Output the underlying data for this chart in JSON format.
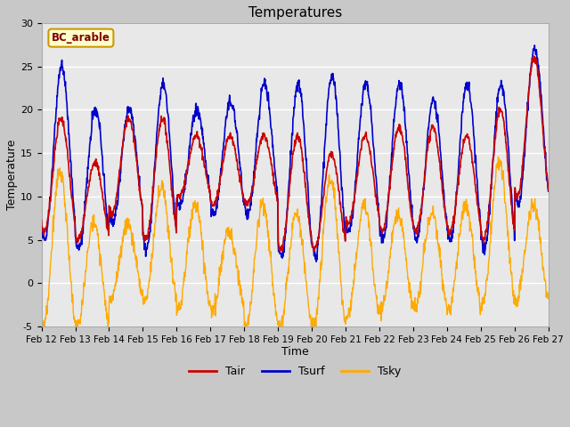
{
  "title": "Temperatures",
  "xlabel": "Time",
  "ylabel": "Temperature",
  "annotation": "BC_arable",
  "ylim": [
    -5,
    30
  ],
  "legend": [
    "Tair",
    "Tsurf",
    "Tsky"
  ],
  "colors": {
    "Tair": "#cc0000",
    "Tsurf": "#0000cc",
    "Tsky": "#ffaa00"
  },
  "xtick_labels": [
    "Feb 12",
    "Feb 13",
    "Feb 14",
    "Feb 15",
    "Feb 16",
    "Feb 17",
    "Feb 18",
    "Feb 19",
    "Feb 20",
    "Feb 21",
    "Feb 22",
    "Feb 23",
    "Feb 24",
    "Feb 25",
    "Feb 26",
    "Feb 27"
  ],
  "ytick_labels": [
    -5,
    0,
    5,
    10,
    15,
    20,
    25,
    30
  ],
  "figure_bg": "#c8c8c8",
  "plot_bg": "#e8e8e8",
  "annotation_fg": "#800000",
  "annotation_bg": "#ffffcc",
  "annotation_border": "#cc9900"
}
